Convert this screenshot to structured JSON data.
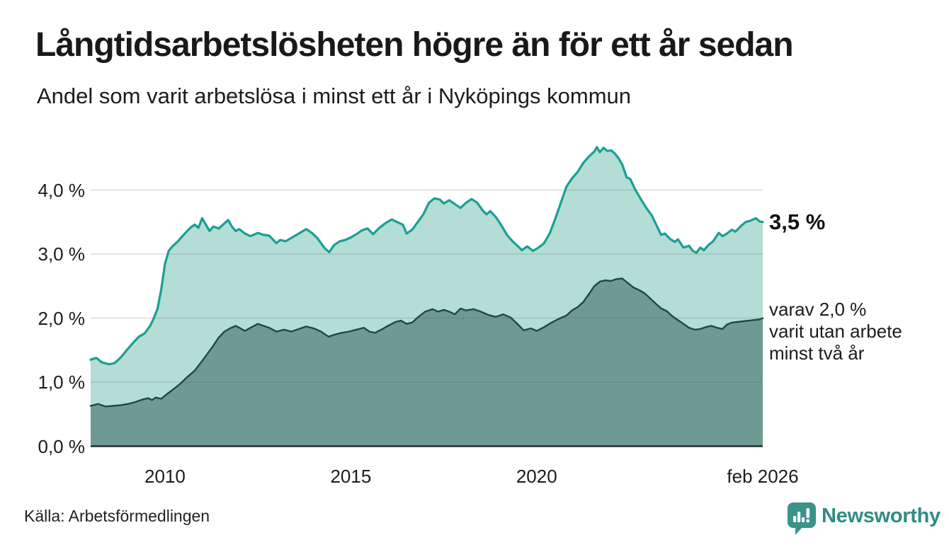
{
  "header": {
    "title": "Långtidsarbetslösheten högre än för ett år sedan",
    "subtitle": "Andel som varit arbetslösa i minst ett år i Nyköpings kommun"
  },
  "chart_data": {
    "type": "area",
    "unit": "%",
    "grid": true,
    "x_domain": [
      2008.0,
      2026.083
    ],
    "y_domain": [
      0,
      4.8
    ],
    "x_ticks": [
      {
        "value": 2010,
        "label": "2010"
      },
      {
        "value": 2015,
        "label": "2015"
      },
      {
        "value": 2020,
        "label": "2020"
      },
      {
        "value": 2026.083,
        "label": "feb 2026"
      }
    ],
    "y_ticks": [
      {
        "value": 0,
        "label": "0,0 %"
      },
      {
        "value": 1,
        "label": "1,0 %"
      },
      {
        "value": 2,
        "label": "2,0 %"
      },
      {
        "value": 3,
        "label": "3,0 %"
      },
      {
        "value": 4,
        "label": "4,0 %"
      }
    ],
    "series": [
      {
        "name": "Andel som varit arbetslösa minst ett år",
        "line_color": "#18a092",
        "fill_color": "#b4ddd6",
        "line_width": 3.2,
        "latest_value": "3,5 %",
        "points": [
          [
            2008.0,
            1.35
          ],
          [
            2008.15,
            1.38
          ],
          [
            2008.3,
            1.31
          ],
          [
            2008.5,
            1.28
          ],
          [
            2008.65,
            1.3
          ],
          [
            2008.8,
            1.38
          ],
          [
            2009.0,
            1.52
          ],
          [
            2009.15,
            1.62
          ],
          [
            2009.3,
            1.71
          ],
          [
            2009.45,
            1.76
          ],
          [
            2009.6,
            1.88
          ],
          [
            2009.7,
            2.0
          ],
          [
            2009.8,
            2.15
          ],
          [
            2009.9,
            2.45
          ],
          [
            2010.0,
            2.85
          ],
          [
            2010.1,
            3.05
          ],
          [
            2010.2,
            3.12
          ],
          [
            2010.35,
            3.2
          ],
          [
            2010.5,
            3.3
          ],
          [
            2010.6,
            3.36
          ],
          [
            2010.7,
            3.42
          ],
          [
            2010.8,
            3.46
          ],
          [
            2010.9,
            3.41
          ],
          [
            2011.0,
            3.56
          ],
          [
            2011.1,
            3.46
          ],
          [
            2011.2,
            3.36
          ],
          [
            2011.3,
            3.43
          ],
          [
            2011.45,
            3.4
          ],
          [
            2011.6,
            3.48
          ],
          [
            2011.7,
            3.53
          ],
          [
            2011.8,
            3.43
          ],
          [
            2011.9,
            3.36
          ],
          [
            2012.0,
            3.39
          ],
          [
            2012.15,
            3.32
          ],
          [
            2012.3,
            3.28
          ],
          [
            2012.5,
            3.33
          ],
          [
            2012.65,
            3.3
          ],
          [
            2012.8,
            3.29
          ],
          [
            2013.0,
            3.17
          ],
          [
            2013.1,
            3.22
          ],
          [
            2013.25,
            3.2
          ],
          [
            2013.45,
            3.27
          ],
          [
            2013.6,
            3.32
          ],
          [
            2013.8,
            3.39
          ],
          [
            2013.95,
            3.33
          ],
          [
            2014.1,
            3.25
          ],
          [
            2014.3,
            3.09
          ],
          [
            2014.42,
            3.03
          ],
          [
            2014.55,
            3.14
          ],
          [
            2014.7,
            3.2
          ],
          [
            2014.85,
            3.22
          ],
          [
            2015.0,
            3.26
          ],
          [
            2015.15,
            3.31
          ],
          [
            2015.3,
            3.37
          ],
          [
            2015.45,
            3.4
          ],
          [
            2015.6,
            3.31
          ],
          [
            2015.75,
            3.4
          ],
          [
            2015.95,
            3.49
          ],
          [
            2016.1,
            3.54
          ],
          [
            2016.25,
            3.5
          ],
          [
            2016.4,
            3.46
          ],
          [
            2016.5,
            3.32
          ],
          [
            2016.65,
            3.38
          ],
          [
            2016.8,
            3.5
          ],
          [
            2016.95,
            3.62
          ],
          [
            2017.1,
            3.8
          ],
          [
            2017.25,
            3.87
          ],
          [
            2017.4,
            3.85
          ],
          [
            2017.5,
            3.79
          ],
          [
            2017.65,
            3.84
          ],
          [
            2017.85,
            3.76
          ],
          [
            2017.95,
            3.72
          ],
          [
            2018.1,
            3.8
          ],
          [
            2018.25,
            3.86
          ],
          [
            2018.4,
            3.8
          ],
          [
            2018.55,
            3.68
          ],
          [
            2018.65,
            3.62
          ],
          [
            2018.75,
            3.67
          ],
          [
            2018.9,
            3.58
          ],
          [
            2019.05,
            3.45
          ],
          [
            2019.2,
            3.3
          ],
          [
            2019.35,
            3.2
          ],
          [
            2019.5,
            3.12
          ],
          [
            2019.6,
            3.06
          ],
          [
            2019.75,
            3.12
          ],
          [
            2019.9,
            3.05
          ],
          [
            2020.05,
            3.1
          ],
          [
            2020.2,
            3.17
          ],
          [
            2020.35,
            3.32
          ],
          [
            2020.5,
            3.55
          ],
          [
            2020.65,
            3.8
          ],
          [
            2020.8,
            4.05
          ],
          [
            2020.95,
            4.18
          ],
          [
            2021.1,
            4.28
          ],
          [
            2021.25,
            4.42
          ],
          [
            2021.4,
            4.52
          ],
          [
            2021.55,
            4.6
          ],
          [
            2021.62,
            4.67
          ],
          [
            2021.7,
            4.59
          ],
          [
            2021.8,
            4.66
          ],
          [
            2021.9,
            4.61
          ],
          [
            2022.0,
            4.62
          ],
          [
            2022.1,
            4.57
          ],
          [
            2022.2,
            4.5
          ],
          [
            2022.3,
            4.4
          ],
          [
            2022.42,
            4.2
          ],
          [
            2022.52,
            4.17
          ],
          [
            2022.65,
            4.01
          ],
          [
            2022.8,
            3.86
          ],
          [
            2022.95,
            3.72
          ],
          [
            2023.1,
            3.6
          ],
          [
            2023.25,
            3.42
          ],
          [
            2023.35,
            3.3
          ],
          [
            2023.45,
            3.32
          ],
          [
            2023.6,
            3.23
          ],
          [
            2023.72,
            3.19
          ],
          [
            2023.8,
            3.23
          ],
          [
            2023.95,
            3.1
          ],
          [
            2024.1,
            3.13
          ],
          [
            2024.2,
            3.05
          ],
          [
            2024.3,
            3.02
          ],
          [
            2024.4,
            3.1
          ],
          [
            2024.5,
            3.06
          ],
          [
            2024.62,
            3.14
          ],
          [
            2024.75,
            3.2
          ],
          [
            2024.9,
            3.33
          ],
          [
            2025.0,
            3.28
          ],
          [
            2025.12,
            3.32
          ],
          [
            2025.25,
            3.38
          ],
          [
            2025.35,
            3.35
          ],
          [
            2025.5,
            3.44
          ],
          [
            2025.62,
            3.5
          ],
          [
            2025.75,
            3.52
          ],
          [
            2025.9,
            3.56
          ],
          [
            2026.0,
            3.51
          ],
          [
            2026.083,
            3.5
          ]
        ]
      },
      {
        "name": "varav utan arbete minst två år",
        "line_color": "#1f4944",
        "fill_color": "#6f9a93",
        "line_width": 2.4,
        "latest_value": "2,0 %",
        "points": [
          [
            2008.0,
            0.63
          ],
          [
            2008.2,
            0.66
          ],
          [
            2008.4,
            0.62
          ],
          [
            2008.6,
            0.63
          ],
          [
            2008.8,
            0.64
          ],
          [
            2009.0,
            0.66
          ],
          [
            2009.2,
            0.69
          ],
          [
            2009.4,
            0.73
          ],
          [
            2009.55,
            0.75
          ],
          [
            2009.65,
            0.72
          ],
          [
            2009.75,
            0.76
          ],
          [
            2009.9,
            0.74
          ],
          [
            2010.0,
            0.79
          ],
          [
            2010.2,
            0.88
          ],
          [
            2010.4,
            0.97
          ],
          [
            2010.6,
            1.08
          ],
          [
            2010.8,
            1.18
          ],
          [
            2011.0,
            1.33
          ],
          [
            2011.15,
            1.45
          ],
          [
            2011.3,
            1.57
          ],
          [
            2011.45,
            1.7
          ],
          [
            2011.6,
            1.79
          ],
          [
            2011.75,
            1.84
          ],
          [
            2011.9,
            1.88
          ],
          [
            2012.0,
            1.85
          ],
          [
            2012.15,
            1.8
          ],
          [
            2012.3,
            1.85
          ],
          [
            2012.5,
            1.91
          ],
          [
            2012.65,
            1.88
          ],
          [
            2012.8,
            1.85
          ],
          [
            2013.0,
            1.79
          ],
          [
            2013.2,
            1.82
          ],
          [
            2013.4,
            1.79
          ],
          [
            2013.6,
            1.83
          ],
          [
            2013.8,
            1.87
          ],
          [
            2014.0,
            1.84
          ],
          [
            2014.2,
            1.79
          ],
          [
            2014.4,
            1.71
          ],
          [
            2014.55,
            1.74
          ],
          [
            2014.75,
            1.77
          ],
          [
            2014.95,
            1.79
          ],
          [
            2015.15,
            1.82
          ],
          [
            2015.35,
            1.85
          ],
          [
            2015.5,
            1.79
          ],
          [
            2015.65,
            1.77
          ],
          [
            2015.85,
            1.83
          ],
          [
            2016.0,
            1.88
          ],
          [
            2016.2,
            1.94
          ],
          [
            2016.35,
            1.96
          ],
          [
            2016.5,
            1.91
          ],
          [
            2016.65,
            1.93
          ],
          [
            2016.8,
            2.01
          ],
          [
            2017.0,
            2.1
          ],
          [
            2017.2,
            2.14
          ],
          [
            2017.35,
            2.1
          ],
          [
            2017.5,
            2.13
          ],
          [
            2017.65,
            2.1
          ],
          [
            2017.8,
            2.06
          ],
          [
            2017.95,
            2.15
          ],
          [
            2018.1,
            2.12
          ],
          [
            2018.3,
            2.14
          ],
          [
            2018.5,
            2.1
          ],
          [
            2018.7,
            2.05
          ],
          [
            2018.9,
            2.02
          ],
          [
            2019.1,
            2.06
          ],
          [
            2019.3,
            2.01
          ],
          [
            2019.5,
            1.9
          ],
          [
            2019.65,
            1.81
          ],
          [
            2019.85,
            1.84
          ],
          [
            2020.0,
            1.8
          ],
          [
            2020.2,
            1.86
          ],
          [
            2020.4,
            1.93
          ],
          [
            2020.6,
            1.99
          ],
          [
            2020.8,
            2.04
          ],
          [
            2020.95,
            2.12
          ],
          [
            2021.1,
            2.17
          ],
          [
            2021.25,
            2.25
          ],
          [
            2021.4,
            2.37
          ],
          [
            2021.55,
            2.5
          ],
          [
            2021.7,
            2.57
          ],
          [
            2021.85,
            2.59
          ],
          [
            2022.0,
            2.58
          ],
          [
            2022.15,
            2.61
          ],
          [
            2022.3,
            2.62
          ],
          [
            2022.45,
            2.55
          ],
          [
            2022.6,
            2.48
          ],
          [
            2022.75,
            2.44
          ],
          [
            2022.9,
            2.39
          ],
          [
            2023.05,
            2.31
          ],
          [
            2023.2,
            2.23
          ],
          [
            2023.35,
            2.15
          ],
          [
            2023.5,
            2.11
          ],
          [
            2023.65,
            2.03
          ],
          [
            2023.8,
            1.97
          ],
          [
            2023.95,
            1.91
          ],
          [
            2024.1,
            1.85
          ],
          [
            2024.25,
            1.82
          ],
          [
            2024.4,
            1.83
          ],
          [
            2024.55,
            1.86
          ],
          [
            2024.7,
            1.88
          ],
          [
            2024.85,
            1.85
          ],
          [
            2025.0,
            1.83
          ],
          [
            2025.12,
            1.9
          ],
          [
            2025.25,
            1.93
          ],
          [
            2025.4,
            1.94
          ],
          [
            2025.55,
            1.95
          ],
          [
            2025.7,
            1.96
          ],
          [
            2025.85,
            1.97
          ],
          [
            2026.0,
            1.98
          ],
          [
            2026.083,
            2.0
          ]
        ]
      }
    ]
  },
  "annotations": {
    "latest_value": "3,5 %",
    "secondary_lines": [
      "varav 2,0 %",
      "varit utan arbete",
      "minst två år"
    ]
  },
  "footer": {
    "source": "Källa: Arbetsförmedlingen",
    "logo_text": "Newsworthy"
  },
  "colors": {
    "line_primary": "#18a092",
    "fill_primary": "#b4ddd6",
    "line_secondary": "#1f4944",
    "fill_secondary": "#6f9a93",
    "gridline": "rgba(90,90,90,0.22)",
    "axis": "#242e2c",
    "logo": "#2e8c85",
    "text": "#1a1a1a"
  }
}
